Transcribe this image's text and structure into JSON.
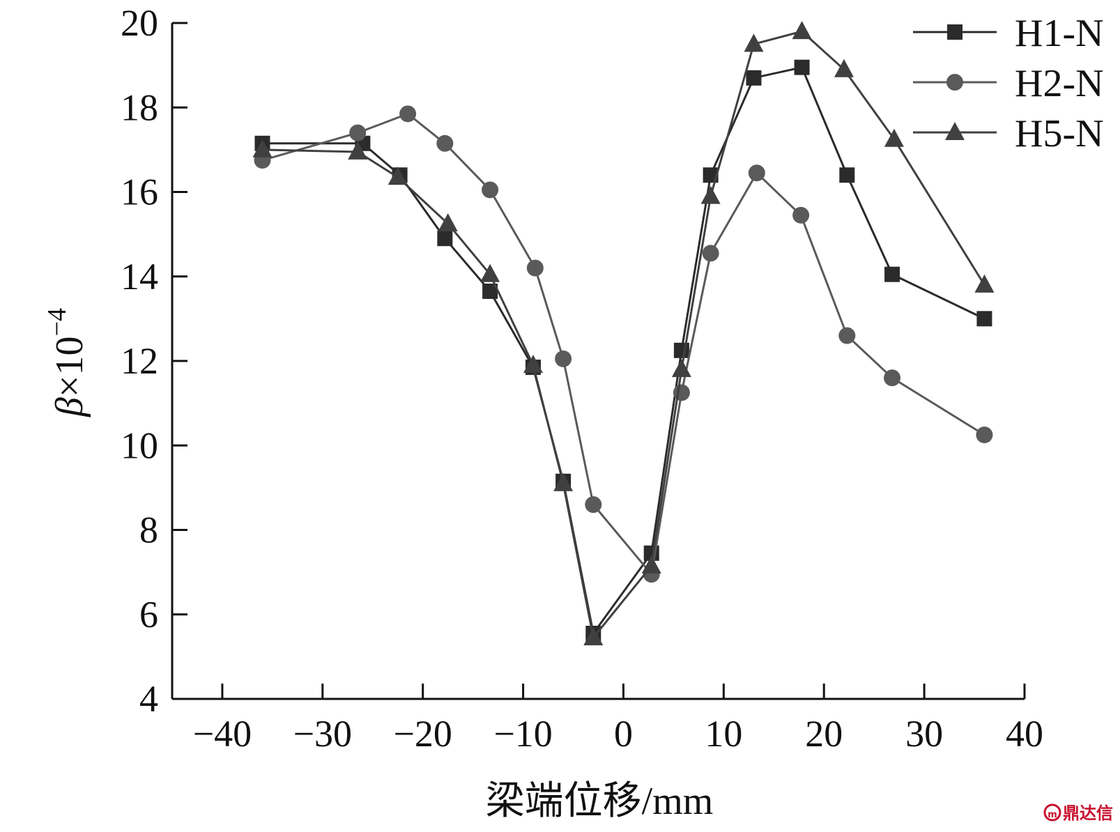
{
  "chart_data": {
    "type": "line",
    "xlabel": "梁端位移/mm",
    "ylabel": "β×10",
    "ylabel_exponent": "−4",
    "xlim": [
      -45,
      40
    ],
    "ylim": [
      4,
      20
    ],
    "xticks": [
      -40,
      -30,
      -20,
      -10,
      0,
      10,
      20,
      30,
      40
    ],
    "yticks": [
      4,
      6,
      8,
      10,
      12,
      14,
      16,
      18,
      20
    ],
    "xtick_labels": [
      "−40",
      "−30",
      "−20",
      "−10",
      "0",
      "10",
      "20",
      "30",
      "40"
    ],
    "ytick_labels": [
      "4",
      "6",
      "8",
      "10",
      "12",
      "14",
      "16",
      "18",
      "20"
    ],
    "grid": false,
    "legend_position": "top-right",
    "series": [
      {
        "name": "H1-N",
        "marker": "square",
        "color": "#2b2b2b",
        "x": [
          -36,
          -26,
          -22.3,
          -17.8,
          -13.3,
          -9,
          -6,
          -3,
          2.8,
          5.8,
          8.7,
          13,
          17.8,
          22.3,
          26.8,
          36
        ],
        "y": [
          17.15,
          17.15,
          16.4,
          14.9,
          13.65,
          11.85,
          9.15,
          5.55,
          7.45,
          12.25,
          16.4,
          18.7,
          18.95,
          16.4,
          14.05,
          13.0
        ]
      },
      {
        "name": "H2-N",
        "marker": "circle",
        "color": "#5a5a5a",
        "x": [
          -36,
          -26.5,
          -21.5,
          -17.8,
          -13.3,
          -8.8,
          -6,
          -3,
          2.8,
          5.8,
          8.7,
          13.3,
          17.7,
          22.3,
          26.8,
          36
        ],
        "y": [
          16.75,
          17.4,
          17.85,
          17.15,
          16.05,
          14.2,
          12.05,
          8.6,
          6.95,
          11.25,
          14.55,
          16.45,
          15.45,
          12.6,
          11.6,
          10.25
        ]
      },
      {
        "name": "H5-N",
        "marker": "triangle",
        "color": "#404040",
        "x": [
          -36,
          -26.5,
          -22.5,
          -17.5,
          -13.3,
          -9,
          -6,
          -3,
          2.8,
          5.8,
          8.7,
          13,
          17.8,
          22,
          27,
          36
        ],
        "y": [
          17.0,
          16.95,
          16.35,
          15.25,
          14.05,
          11.9,
          9.1,
          5.45,
          7.15,
          11.8,
          15.9,
          19.5,
          19.8,
          18.9,
          17.25,
          13.8
        ]
      }
    ]
  },
  "watermark": {
    "text": "鼎达信",
    "color": "#c8102e"
  }
}
